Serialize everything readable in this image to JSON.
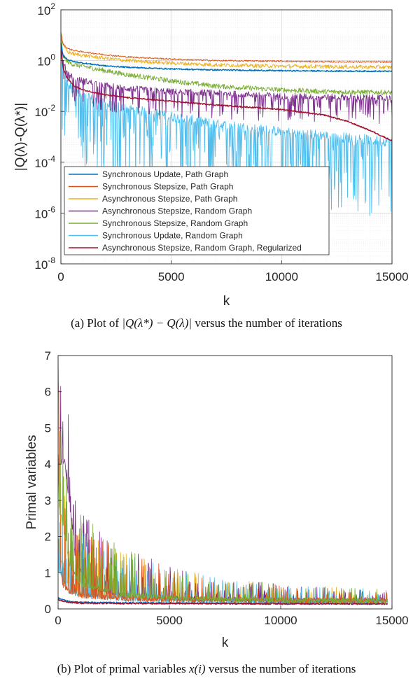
{
  "captions": {
    "a_prefix": "(a) Plot of ",
    "a_math": "|Q(λ*) − Q(λ)|",
    "a_suffix": " versus the number of iterations",
    "b_prefix": "(b) Plot of primal variables ",
    "b_math": "x(i)",
    "b_suffix": " versus the number of iterations"
  },
  "chart_data": [
    {
      "type": "line",
      "title": "",
      "xlabel": "k",
      "ylabel": "|Q(λ)-Q(λ*)|",
      "y_scale": "log",
      "xlim": [
        0,
        15000
      ],
      "ylim": [
        1e-08,
        100
      ],
      "x_ticks": [
        0,
        5000,
        10000,
        15000
      ],
      "x_tick_labels": [
        "0",
        "5000",
        "10000",
        "15000"
      ],
      "y_ticks": [
        1e-08,
        1e-06,
        0.0001,
        0.01,
        1,
        100
      ],
      "y_tick_labels": [
        {
          "base": "10",
          "exp": "-8"
        },
        {
          "base": "10",
          "exp": "-6"
        },
        {
          "base": "10",
          "exp": "-4"
        },
        {
          "base": "10",
          "exp": "-2"
        },
        {
          "base": "10",
          "exp": "0"
        },
        {
          "base": "10",
          "exp": "2"
        }
      ],
      "grid": true,
      "legend_position": "bottom-left",
      "series": [
        {
          "name": "Synchronous Update, Path Graph",
          "color": "#0072BD",
          "x": [
            0,
            100,
            300,
            600,
            1000,
            2000,
            3000,
            5000,
            7000,
            10000,
            12000,
            15000
          ],
          "y": [
            5,
            1.6,
            1.1,
            0.9,
            0.8,
            0.62,
            0.55,
            0.47,
            0.43,
            0.4,
            0.39,
            0.38
          ]
        },
        {
          "name": "Synchronous Stepsize, Path Graph",
          "color": "#D95319",
          "x": [
            0,
            100,
            300,
            600,
            1000,
            2000,
            3000,
            5000,
            7000,
            10000,
            12000,
            15000
          ],
          "y": [
            12,
            4.5,
            3,
            2.5,
            2.2,
            1.7,
            1.4,
            1.15,
            1.0,
            0.95,
            0.9,
            0.88
          ]
        },
        {
          "name": "Asynchronous Stepsize, Path Graph",
          "color": "#EDB120",
          "x": [
            0,
            100,
            300,
            600,
            1000,
            2000,
            3000,
            5000,
            7000,
            10000,
            12000,
            15000
          ],
          "y": [
            15,
            4,
            2.2,
            1.8,
            1.6,
            1.25,
            1.0,
            0.8,
            0.68,
            0.6,
            0.58,
            0.55
          ]
        },
        {
          "name": "Asynchronous Stepsize, Random Graph",
          "color": "#7E2F8E",
          "x": [
            0,
            100,
            300,
            600,
            1000,
            2000,
            3000,
            5000,
            7000,
            10000,
            12000,
            15000
          ],
          "y": [
            3,
            0.6,
            0.25,
            0.15,
            0.12,
            0.08,
            0.06,
            0.045,
            0.04,
            0.03,
            0.028,
            0.025
          ]
        },
        {
          "name": "Synchronous Stepsize, Random Graph",
          "color": "#77AC30",
          "x": [
            0,
            100,
            300,
            600,
            1000,
            2000,
            3000,
            5000,
            7000,
            10000,
            12000,
            15000
          ],
          "y": [
            8,
            1.5,
            0.9,
            0.7,
            0.6,
            0.4,
            0.28,
            0.16,
            0.1,
            0.07,
            0.06,
            0.055
          ]
        },
        {
          "name": "Synchronous Update, Random Graph",
          "color": "#4DBEEE",
          "x": [
            0,
            100,
            300,
            600,
            1000,
            2000,
            3000,
            5000,
            7000,
            10000,
            12000,
            15000
          ],
          "y": [
            2,
            0.3,
            0.08,
            0.04,
            0.025,
            0.012,
            0.008,
            0.004,
            0.002,
            0.001,
            0.0007,
            0.0004
          ]
        },
        {
          "name": "Asynchronous Stepsize, Random Graph, Regularized",
          "color": "#A2142F",
          "x": [
            0,
            100,
            300,
            600,
            1000,
            2000,
            3000,
            5000,
            7000,
            10000,
            12000,
            13000,
            14000,
            15000
          ],
          "y": [
            2.5,
            0.5,
            0.2,
            0.1,
            0.07,
            0.045,
            0.035,
            0.025,
            0.018,
            0.012,
            0.007,
            0.004,
            0.0018,
            0.0007
          ]
        }
      ]
    },
    {
      "type": "line",
      "title": "",
      "xlabel": "k",
      "ylabel": "Primal variables",
      "xlim": [
        0,
        15000
      ],
      "ylim": [
        0,
        7
      ],
      "x_ticks": [
        0,
        5000,
        10000,
        15000
      ],
      "x_tick_labels": [
        "0",
        "5000",
        "10000",
        "15000"
      ],
      "y_ticks": [
        0,
        1,
        2,
        3,
        4,
        5,
        6,
        7
      ],
      "y_tick_labels": [
        "0",
        "1",
        "2",
        "3",
        "4",
        "5",
        "6",
        "7"
      ],
      "grid": false,
      "series": [
        {
          "color": "#0072BD",
          "x": [
            0,
            500,
            1000,
            3000,
            6000,
            10000,
            15000
          ],
          "y": [
            0.3,
            0.2,
            0.18,
            0.17,
            0.16,
            0.16,
            0.15
          ]
        },
        {
          "color": "#D95319",
          "x": [
            0,
            30,
            60,
            200,
            500,
            1000,
            3000,
            6000,
            10000,
            15000
          ],
          "y": [
            7,
            5,
            1.5,
            0.6,
            0.4,
            0.3,
            0.2,
            0.18,
            0.16,
            0.15
          ]
        },
        {
          "color": "#EDB120",
          "x": [
            0,
            500,
            1000,
            3000,
            6000,
            10000,
            15000
          ],
          "y": [
            1.5,
            0.5,
            0.35,
            0.25,
            0.2,
            0.17,
            0.15
          ]
        },
        {
          "color": "#7E2F8E",
          "x": [
            0,
            300,
            800,
            1500,
            3000,
            6000,
            10000,
            15000
          ],
          "y": [
            4,
            4,
            1.2,
            0.5,
            0.3,
            0.2,
            0.16,
            0.15
          ]
        },
        {
          "color": "#77AC30",
          "x": [
            0,
            500,
            1000,
            3000,
            6000,
            10000,
            15000
          ],
          "y": [
            3,
            1.2,
            0.6,
            0.3,
            0.2,
            0.16,
            0.14
          ]
        },
        {
          "color": "#4DBEEE",
          "x": [
            0,
            500,
            1000,
            3000,
            6000,
            10000,
            15000
          ],
          "y": [
            1,
            0.4,
            0.3,
            0.2,
            0.16,
            0.15,
            0.14
          ]
        },
        {
          "color": "#A2142F",
          "x": [
            0,
            500,
            1000,
            3000,
            6000,
            10000,
            15000
          ],
          "y": [
            0.25,
            0.18,
            0.16,
            0.15,
            0.15,
            0.14,
            0.14
          ]
        }
      ]
    }
  ]
}
